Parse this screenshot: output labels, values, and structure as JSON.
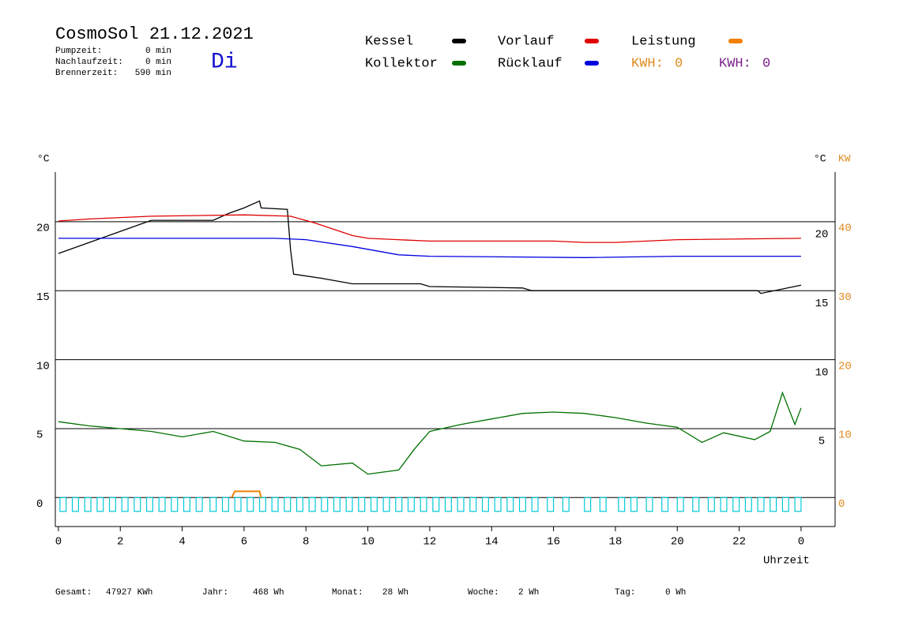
{
  "chart_data": {
    "type": "line",
    "title": "CosmoSol 21.12.2021",
    "weekday": "Di",
    "info": [
      [
        "Pumpzeit:",
        "0 min"
      ],
      [
        "Nachlaufzeit:",
        "0 min"
      ],
      [
        "Brennerzeit:",
        "590 min"
      ]
    ],
    "y_label": "°C",
    "y_label_right": "°C",
    "y2_label": "KW",
    "x_label": "Uhrzeit",
    "kwh": [
      {
        "label": "KWH:",
        "value": 0,
        "color": "#e08a1e"
      },
      {
        "label": "KWH:",
        "value": 0,
        "color": "#7a1f8a"
      }
    ],
    "xlim": [
      -0.1,
      25.1
    ],
    "xticks": [
      0,
      2,
      4,
      6,
      8,
      10,
      12,
      14,
      16,
      18,
      20,
      22,
      {
        "value": 24,
        "label": "0"
      }
    ],
    "ylim": [
      -2.1,
      23.6
    ],
    "yticks": [
      0,
      5,
      10,
      15,
      20
    ],
    "yticks_right": [
      5,
      10,
      15,
      20
    ],
    "y2lim": [
      -4.2,
      47.2
    ],
    "y2ticks": [
      0,
      10,
      20,
      30,
      40
    ],
    "grid": true,
    "series": [
      {
        "name": "Kessel",
        "color": "#000000",
        "x": [
          0,
          1,
          2,
          3,
          5,
          5.5,
          6,
          6.5,
          6.55,
          7.4,
          7.5,
          7.6,
          8.5,
          9.5,
          11.7,
          12,
          15,
          15.3,
          22.6,
          22.7,
          24
        ],
        "values": [
          17.7,
          18.5,
          19.3,
          20.1,
          20.1,
          20.6,
          21.0,
          21.5,
          21.0,
          20.9,
          18.0,
          16.2,
          15.9,
          15.5,
          15.5,
          15.3,
          15.2,
          15.0,
          15.0,
          14.8,
          15.4
        ]
      },
      {
        "name": "Kollektor",
        "color": "#007000",
        "x": [
          0,
          1,
          2,
          3,
          4,
          5,
          6,
          7,
          7.8,
          8.5,
          9.5,
          10,
          11,
          11.5,
          12,
          13,
          14,
          15,
          16,
          17,
          18,
          19,
          20,
          20.8,
          21.5,
          22.5,
          23,
          23.4,
          23.8,
          24
        ],
        "values": [
          5.5,
          5.2,
          5.0,
          4.8,
          4.4,
          4.8,
          4.1,
          4.0,
          3.5,
          2.3,
          2.5,
          1.7,
          2.0,
          3.5,
          4.8,
          5.3,
          5.7,
          6.1,
          6.2,
          6.1,
          5.8,
          5.4,
          5.1,
          4.0,
          4.7,
          4.2,
          4.8,
          7.6,
          5.3,
          6.5
        ]
      },
      {
        "name": "Vorlauf",
        "color": "#e00000",
        "x": [
          0,
          1,
          3,
          6,
          7.5,
          8.3,
          9.5,
          10,
          12,
          16,
          17,
          18,
          20,
          24
        ],
        "values": [
          20.05,
          20.2,
          20.4,
          20.5,
          20.4,
          19.9,
          19.0,
          18.8,
          18.6,
          18.6,
          18.5,
          18.5,
          18.7,
          18.8
        ]
      },
      {
        "name": "Rücklauf",
        "color": "#0000e0",
        "x": [
          0,
          7,
          8,
          9.5,
          10,
          11,
          12,
          17,
          20,
          24
        ],
        "values": [
          18.8,
          18.8,
          18.7,
          18.2,
          18.0,
          17.6,
          17.5,
          17.4,
          17.5,
          17.5
        ]
      },
      {
        "name": "Leistung",
        "color": "#f08000",
        "axis": "y2",
        "x": [
          5.6,
          5.7,
          6.5,
          6.55
        ],
        "values": [
          0,
          0.9,
          0.9,
          0
        ]
      }
    ],
    "pump_pulses": [
      0.05,
      0.45,
      0.85,
      1.25,
      1.65,
      2.05,
      2.45,
      2.85,
      3.25,
      3.65,
      4.05,
      4.45,
      4.9,
      5.3,
      5.7,
      6.1,
      6.5,
      6.9,
      7.3,
      7.7,
      8.1,
      8.5,
      8.9,
      9.3,
      9.7,
      10.1,
      10.5,
      10.9,
      11.3,
      11.7,
      12.1,
      12.5,
      12.9,
      13.3,
      13.7,
      14.1,
      14.5,
      14.9,
      15.3,
      15.8,
      16.3,
      17.0,
      17.5,
      18.1,
      18.5,
      19.0,
      19.5,
      20.0,
      20.5,
      21.0,
      21.4,
      21.8,
      22.2,
      22.6,
      23.0,
      23.4,
      23.8
    ],
    "pump_pulse_width": 0.2,
    "pump_range": [
      -1,
      0
    ],
    "pump_color": "#00c8d8",
    "footer": [
      [
        "Gesamt:",
        "47927 KWh"
      ],
      [
        "Jahr:",
        "468 Wh"
      ],
      [
        "Monat:",
        "28 Wh"
      ],
      [
        "Woche:",
        "2 Wh"
      ],
      [
        "Tag:",
        "0 Wh"
      ]
    ]
  }
}
